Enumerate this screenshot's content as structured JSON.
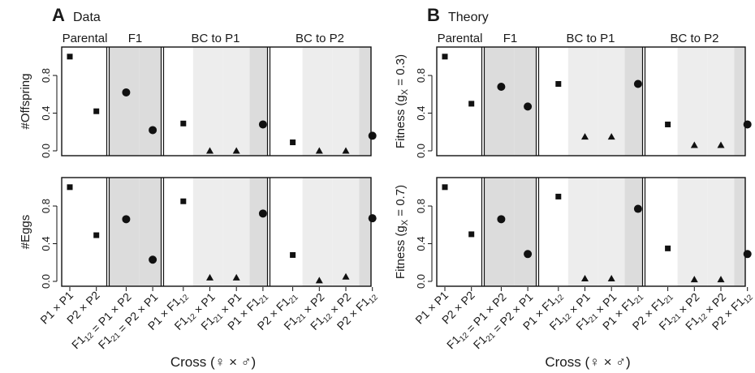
{
  "figure": {
    "xlabel_prefix": "Cross (",
    "female_symbol": "♀",
    "times": "×",
    "male_symbol": "♂",
    "xlabel_suffix": ")"
  },
  "groups": [
    "Parental",
    "F1",
    "BC to P1",
    "BC to P2"
  ],
  "categories": [
    {
      "a": "P1",
      "as": "",
      "op": "×",
      "b": "P1",
      "bs": "",
      "eq": ""
    },
    {
      "a": "P2",
      "as": "",
      "op": "×",
      "b": "P2",
      "bs": "",
      "eq": ""
    },
    {
      "a": "F1",
      "as": "12",
      "op": "=",
      "b": "P1",
      "bs": "",
      "eq": " × P2"
    },
    {
      "a": "F1",
      "as": "21",
      "op": "=",
      "b": "P2",
      "bs": "",
      "eq": " × P1"
    },
    {
      "a": "P1",
      "as": "",
      "op": "×",
      "b": "F1",
      "bs": "12",
      "eq": ""
    },
    {
      "a": "F1",
      "as": "12",
      "op": "×",
      "b": "P1",
      "bs": "",
      "eq": ""
    },
    {
      "a": "F1",
      "as": "21",
      "op": "×",
      "b": "P1",
      "bs": "",
      "eq": ""
    },
    {
      "a": "P1",
      "as": "",
      "op": "×",
      "b": "F1",
      "bs": "21",
      "eq": ""
    },
    {
      "a": "P2",
      "as": "",
      "op": "×",
      "b": "F1",
      "bs": "21",
      "eq": ""
    },
    {
      "a": "F1",
      "as": "21",
      "op": "×",
      "b": "P2",
      "bs": "",
      "eq": ""
    },
    {
      "a": "F1",
      "as": "12",
      "op": "×",
      "b": "P2",
      "bs": "",
      "eq": ""
    },
    {
      "a": "P2",
      "as": "",
      "op": "×",
      "b": "F1",
      "bs": "12",
      "eq": ""
    }
  ],
  "marker_by_category": [
    "square",
    "square",
    "circle",
    "circle",
    "square",
    "triangle",
    "triangle",
    "circle",
    "square",
    "triangle",
    "triangle",
    "circle"
  ],
  "shading_by_category": [
    "none",
    "none",
    "dark",
    "dark",
    "none",
    "light",
    "light",
    "dark",
    "none",
    "light",
    "light",
    "dark"
  ],
  "colors": {
    "dark": "#dcdcdc",
    "light": "#ededed",
    "marker": "#111111"
  },
  "panels": {
    "A": {
      "letter": "A",
      "title": "Data"
    },
    "B": {
      "letter": "B",
      "title": "Theory"
    }
  },
  "chart_data": [
    {
      "type": "scatter",
      "panel": "A-top",
      "ylabel": "#Offspring",
      "ylim": [
        0,
        1.05
      ],
      "yticks": [
        "0.0",
        "0.4",
        "0.8"
      ],
      "values": [
        1.0,
        0.42,
        0.62,
        0.22,
        0.29,
        0.0,
        0.0,
        0.28,
        0.09,
        0.0,
        0.0,
        0.16
      ]
    },
    {
      "type": "scatter",
      "panel": "A-bottom",
      "ylabel": "#Eggs",
      "ylim": [
        0,
        1.05
      ],
      "yticks": [
        "0.0",
        "0.4",
        "0.8"
      ],
      "values": [
        1.0,
        0.49,
        0.66,
        0.23,
        0.85,
        0.04,
        0.04,
        0.72,
        0.28,
        0.01,
        0.05,
        0.67
      ]
    },
    {
      "type": "scatter",
      "panel": "B-top",
      "ylabel": "Fitness (g",
      "ylabel_sub": "X",
      "ylabel_end": " = 0.3)",
      "ylim": [
        0,
        1.05
      ],
      "yticks": [
        "0.0",
        "0.4",
        "0.8"
      ],
      "values": [
        1.0,
        0.5,
        0.68,
        0.47,
        0.71,
        0.15,
        0.15,
        0.71,
        0.28,
        0.06,
        0.06,
        0.28
      ]
    },
    {
      "type": "scatter",
      "panel": "B-bottom",
      "ylabel": "Fitness (g",
      "ylabel_sub": "X",
      "ylabel_end": " = 0.7)",
      "ylim": [
        0,
        1.05
      ],
      "yticks": [
        "0.0",
        "0.4",
        "0.8"
      ],
      "values": [
        1.0,
        0.5,
        0.66,
        0.29,
        0.9,
        0.03,
        0.03,
        0.77,
        0.35,
        0.02,
        0.02,
        0.29
      ]
    }
  ]
}
